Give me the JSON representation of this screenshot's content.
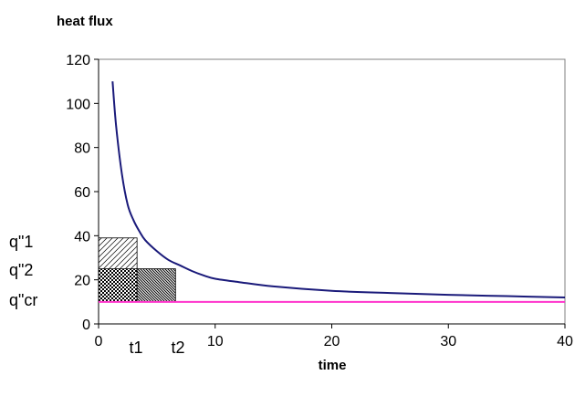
{
  "chart_data": {
    "type": "line",
    "title": "",
    "ylabel": "heat flux",
    "xlabel": "time",
    "xlim": [
      0,
      40
    ],
    "ylim": [
      0,
      120
    ],
    "x_ticks": [
      "0",
      "10",
      "20",
      "30",
      "40"
    ],
    "y_ticks": [
      "0",
      "20",
      "40",
      "60",
      "80",
      "100",
      "120"
    ],
    "grid": false,
    "legend": "none",
    "series": [
      {
        "color": "#1a1a7a",
        "x": [
          1.2,
          1.5,
          2,
          2.5,
          3,
          3.5,
          4,
          5,
          6,
          7,
          8,
          9,
          10,
          12,
          15,
          20,
          25,
          30,
          35,
          40
        ],
        "y": [
          110,
          90,
          68,
          54,
          47,
          42,
          38,
          33,
          29,
          26.5,
          24,
          22,
          20.5,
          19,
          17,
          15,
          14,
          13.2,
          12.6,
          12
        ]
      },
      {
        "color": "#ff33cc",
        "x": [
          0,
          40
        ],
        "y": [
          10,
          10
        ]
      }
    ],
    "annotations": {
      "q1_label": "q\"1",
      "q2_label": "q\"2",
      "qcr_label": "q\"cr",
      "t1_label": "t1",
      "t2_label": "t2",
      "regions": [
        {
          "x0": 0,
          "x1": 3.3,
          "y0": 10,
          "y1": 39,
          "pattern": "diagonal-hatch"
        },
        {
          "x0": 0,
          "x1": 3.3,
          "y0": 10,
          "y1": 25,
          "pattern": "checker"
        },
        {
          "x0": 3.3,
          "x1": 6.6,
          "y0": 10,
          "y1": 25,
          "pattern": "dense-diagonal"
        }
      ],
      "q1_y": 39,
      "q2_y": 25,
      "qcr_y": 10
    },
    "colors": {
      "curve": "#1a1a7a",
      "critical": "#ff33cc",
      "axis": "#000000",
      "frame": "#808080"
    }
  }
}
